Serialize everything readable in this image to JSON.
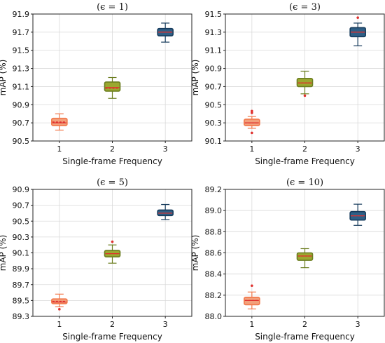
{
  "chart_data": [
    {
      "type": "box",
      "title": "(ϵ = 1)",
      "xlabel": "Single-frame Frequency",
      "ylabel": "mAP (%)",
      "categories": [
        "1",
        "2",
        "3"
      ],
      "ylim": [
        90.5,
        91.9
      ],
      "yticks": [
        "90.5",
        "90.7",
        "90.9",
        "91.1",
        "91.3",
        "91.5",
        "91.7",
        "91.9"
      ],
      "grid": true,
      "boxes": [
        {
          "category": "1",
          "whisker_low": 90.62,
          "q1": 90.67,
          "median": 90.7,
          "mean": 90.71,
          "q3": 90.75,
          "whisker_high": 90.8,
          "outliers": []
        },
        {
          "category": "2",
          "whisker_low": 90.97,
          "q1": 91.05,
          "median": 91.09,
          "mean": 91.08,
          "q3": 91.15,
          "whisker_high": 91.2,
          "outliers": []
        },
        {
          "category": "3",
          "whisker_low": 91.59,
          "q1": 91.66,
          "median": 91.7,
          "mean": 91.7,
          "q3": 91.74,
          "whisker_high": 91.8,
          "outliers": []
        }
      ]
    },
    {
      "type": "box",
      "title": "(ϵ = 3)",
      "xlabel": "Single-frame Frequency",
      "ylabel": "mAP (%)",
      "categories": [
        "1",
        "2",
        "3"
      ],
      "ylim": [
        90.1,
        91.5
      ],
      "yticks": [
        "90.1",
        "90.3",
        "90.5",
        "90.7",
        "90.9",
        "91.1",
        "91.3",
        "91.5"
      ],
      "grid": true,
      "boxes": [
        {
          "category": "1",
          "whisker_low": 90.24,
          "q1": 90.27,
          "median": 90.3,
          "mean": 90.3,
          "q3": 90.34,
          "whisker_high": 90.37,
          "outliers": [
            90.19,
            90.41,
            90.43
          ]
        },
        {
          "category": "2",
          "whisker_low": 90.62,
          "q1": 90.7,
          "median": 90.74,
          "mean": 90.74,
          "q3": 90.79,
          "whisker_high": 90.87,
          "outliers": [
            90.6
          ]
        },
        {
          "category": "3",
          "whisker_low": 91.15,
          "q1": 91.25,
          "median": 91.3,
          "mean": 91.3,
          "q3": 91.35,
          "whisker_high": 91.4,
          "outliers": [
            91.46
          ]
        }
      ]
    },
    {
      "type": "box",
      "title": "(ϵ = 5)",
      "xlabel": "Single-frame Frequency",
      "ylabel": "mAP (%)",
      "categories": [
        "1",
        "2",
        "3"
      ],
      "ylim": [
        89.3,
        90.9
      ],
      "yticks": [
        "89.3",
        "89.5",
        "89.7",
        "89.9",
        "90.1",
        "90.3",
        "90.5",
        "90.7",
        "90.9"
      ],
      "grid": true,
      "boxes": [
        {
          "category": "1",
          "whisker_low": 89.42,
          "q1": 89.46,
          "median": 89.48,
          "mean": 89.49,
          "q3": 89.52,
          "whisker_high": 89.58,
          "outliers": [
            89.39
          ]
        },
        {
          "category": "2",
          "whisker_low": 89.97,
          "q1": 90.05,
          "median": 90.09,
          "mean": 90.09,
          "q3": 90.13,
          "whisker_high": 90.2,
          "outliers": [
            90.24
          ]
        },
        {
          "category": "3",
          "whisker_low": 90.52,
          "q1": 90.57,
          "median": 90.6,
          "mean": 90.6,
          "q3": 90.64,
          "whisker_high": 90.71,
          "outliers": []
        }
      ]
    },
    {
      "type": "box",
      "title": "(ϵ = 10)",
      "xlabel": "Single-frame Frequency",
      "ylabel": "mAP (%)",
      "categories": [
        "1",
        "2",
        "3"
      ],
      "ylim": [
        88.0,
        89.2
      ],
      "yticks": [
        "88.0",
        "88.2",
        "88.4",
        "88.6",
        "88.8",
        "89.0",
        "89.2"
      ],
      "grid": true,
      "boxes": [
        {
          "category": "1",
          "whisker_low": 88.07,
          "q1": 88.11,
          "median": 88.15,
          "mean": 88.15,
          "q3": 88.18,
          "whisker_high": 88.23,
          "outliers": [
            88.29
          ]
        },
        {
          "category": "2",
          "whisker_low": 88.46,
          "q1": 88.53,
          "median": 88.57,
          "mean": 88.57,
          "q3": 88.6,
          "whisker_high": 88.64,
          "outliers": []
        },
        {
          "category": "3",
          "whisker_low": 88.86,
          "q1": 88.91,
          "median": 88.95,
          "mean": 88.95,
          "q3": 88.99,
          "whisker_high": 89.06,
          "outliers": []
        }
      ]
    }
  ],
  "colors": {
    "1": {
      "fill": "#f2a07b",
      "edge": "#f2784b"
    },
    "2": {
      "fill": "#9aa830",
      "edge": "#6b7d1f"
    },
    "3": {
      "fill": "#2e5f86",
      "edge": "#163b5c"
    },
    "median": "#e0312e",
    "outlier": "#e0312e"
  }
}
